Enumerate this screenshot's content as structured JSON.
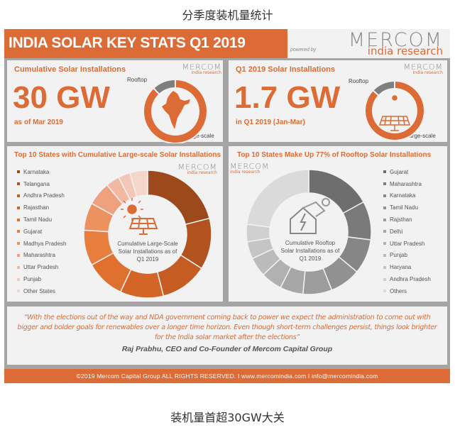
{
  "captions": {
    "top": "分季度装机量统计",
    "bottom": "装机量首超30GW大关"
  },
  "header": {
    "title": "INDIA SOLAR KEY STATS Q1 2019"
  },
  "logo": {
    "brand": "MERCOM",
    "powered_by": "powered by",
    "sub": "india research"
  },
  "cumulative": {
    "title": "Cumulative Solar Installations",
    "value": "30 GW",
    "note": "as of Mar 2019",
    "rooftop_label": "Rooftop",
    "large_label": "Large-scale",
    "icon": "india-map-icon"
  },
  "q1": {
    "title": "Q1 2019 Solar Installations",
    "value": "1.7 GW",
    "note": "in Q1 2019 (Jan-Mar)",
    "rooftop_label": "Rooftop",
    "large_label": "Large-scale",
    "icon": "solar-panel-icon"
  },
  "large_states": {
    "title": "Top 10 States with Cumulative Large-scale Solar Installations",
    "center": [
      "Cumulative Large-Scale",
      "Solar Installations as of",
      "Q1 2019"
    ]
  },
  "rooftop_states": {
    "title": "Top 10 States Make Up 77% of Rooftop Solar Installations",
    "center": [
      "Cumulative Rooftop",
      "Solar Installations as of",
      "Q1 2019"
    ]
  },
  "quote": {
    "text": "“With the elections out of the way and NDA government coming back to power we expect the administration to come out with bigger and bolder goals for renewables over a longer time horizon. Even though short-term challenges persist, things look brighter for the India solar market after the elections”",
    "author": "Raj Prabhu, CEO and Co-Founder of Mercom Capital Group"
  },
  "footer": {
    "text": "©2019 Mercom Capital Group ALL RIGHTS RESERVED.  I  www.mercomindia.com  I  info@mercomindia.com"
  },
  "colors": {
    "accent": "#dc6b35",
    "rooftop_gray": "#7f7f7f",
    "border": "#a5a5a5"
  },
  "chart_data": [
    {
      "type": "pie",
      "title": "Cumulative Solar Installations",
      "categories": [
        "Rooftop",
        "Large-scale"
      ],
      "values": [
        12,
        88
      ],
      "colors": [
        "#7f7f7f",
        "#dc6b35"
      ]
    },
    {
      "type": "pie",
      "title": "Q1 2019 Solar Installations",
      "categories": [
        "Rooftop",
        "Large-scale"
      ],
      "values": [
        13,
        87
      ],
      "colors": [
        "#7f7f7f",
        "#dc6b35"
      ]
    },
    {
      "type": "pie",
      "title": "Top 10 States with Cumulative Large-scale Solar Installations",
      "legend": "left",
      "categories": [
        "Karnataka",
        "Telangana",
        "Andhra Pradesh",
        "Rajasthan",
        "Tamil Nadu",
        "Gujarat",
        "Madhya Pradesh",
        "Maharashtra",
        "Uttar Pradesh",
        "Punjab",
        "Other States"
      ],
      "values": [
        21,
        13,
        12,
        11,
        10,
        9,
        7,
        6,
        3.5,
        3,
        4.5
      ],
      "colors": [
        "#9c4a1c",
        "#b2531f",
        "#c55c22",
        "#d36526",
        "#e0702e",
        "#e77e3d",
        "#ec9160",
        "#efa07c",
        "#f2b8a2",
        "#f4c6b5",
        "#f6d6ca"
      ]
    },
    {
      "type": "pie",
      "title": "Top 10 States Make Up 77% of Rooftop Solar Installations",
      "legend": "right",
      "categories": [
        "Gujarat",
        "Maharashtra",
        "Karnataka",
        "Tamil Nadu",
        "Rajsthan",
        "Delhi",
        "Uttar Pradesh",
        "Punjab",
        "Haryana",
        "Andhra Pradesh",
        "Others"
      ],
      "values": [
        17,
        10,
        9,
        8,
        7.5,
        6,
        5.5,
        5,
        4.5,
        4.5,
        23
      ],
      "colors": [
        "#6e6e6e",
        "#7a7a7a",
        "#868686",
        "#919191",
        "#9c9c9c",
        "#a7a7a7",
        "#b1b1b1",
        "#bbbbbb",
        "#c5c5c5",
        "#cfcfcf",
        "#dadada"
      ]
    }
  ]
}
